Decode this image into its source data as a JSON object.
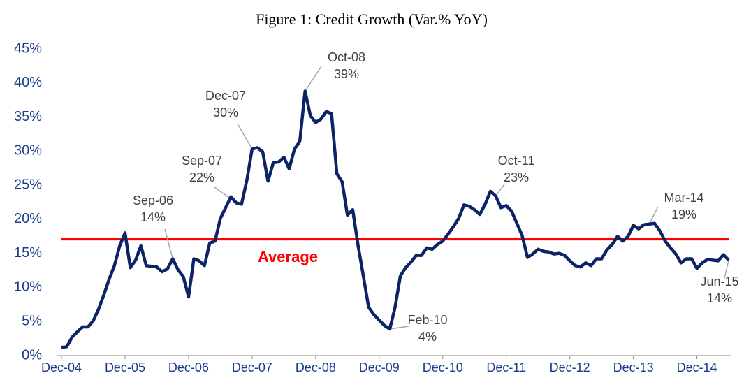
{
  "chart_data": {
    "type": "line",
    "title": "Figure 1: Credit Growth (Var.% YoY)",
    "categories": [
      "Dec-04",
      null,
      null,
      null,
      null,
      null,
      null,
      null,
      null,
      null,
      null,
      null,
      "Dec-05",
      null,
      null,
      null,
      null,
      null,
      null,
      null,
      null,
      null,
      null,
      null,
      "Dec-06",
      null,
      null,
      null,
      null,
      null,
      null,
      null,
      null,
      null,
      null,
      null,
      "Dec-07",
      null,
      null,
      null,
      null,
      null,
      null,
      null,
      null,
      null,
      null,
      null,
      "Dec-08",
      null,
      null,
      null,
      null,
      null,
      null,
      null,
      null,
      null,
      null,
      null,
      "Dec-09",
      null,
      null,
      null,
      null,
      null,
      null,
      null,
      null,
      null,
      null,
      null,
      "Dec-10",
      null,
      null,
      null,
      null,
      null,
      null,
      null,
      null,
      null,
      null,
      null,
      "Dec-11",
      null,
      null,
      null,
      null,
      null,
      null,
      null,
      null,
      null,
      null,
      null,
      "Dec-12",
      null,
      null,
      null,
      null,
      null,
      null,
      null,
      null,
      null,
      null,
      null,
      "Dec-13",
      null,
      null,
      null,
      null,
      null,
      null,
      null,
      null,
      null,
      null,
      null,
      "Dec-14",
      null,
      null,
      null,
      null,
      null,
      null
    ],
    "values": [
      1.2,
      1.3,
      2.7,
      3.5,
      4.2,
      4.2,
      5.1,
      6.8,
      8.9,
      11.2,
      13.2,
      16.1,
      18.0,
      12.9,
      14.0,
      16.1,
      13.2,
      13.1,
      13.0,
      12.3,
      12.7,
      14.2,
      12.6,
      11.6,
      8.6,
      14.2,
      13.9,
      13.2,
      16.5,
      16.8,
      20.1,
      21.7,
      23.3,
      22.4,
      22.2,
      25.7,
      30.3,
      30.5,
      29.9,
      25.6,
      28.3,
      28.4,
      29.1,
      27.4,
      30.3,
      31.4,
      38.8,
      35.2,
      34.2,
      34.7,
      35.8,
      35.5,
      26.7,
      25.5,
      20.6,
      21.4,
      16.2,
      11.7,
      7.1,
      6.0,
      5.2,
      4.4,
      3.9,
      7.1,
      11.7,
      12.9,
      13.7,
      14.7,
      14.7,
      15.8,
      15.6,
      16.3,
      16.8,
      17.8,
      18.9,
      20.1,
      22.1,
      21.9,
      21.4,
      20.7,
      22.2,
      24.1,
      23.4,
      21.7,
      22.0,
      21.2,
      19.4,
      17.6,
      14.4,
      14.9,
      15.6,
      15.3,
      15.2,
      14.9,
      15.0,
      14.7,
      13.9,
      13.2,
      13.0,
      13.6,
      13.2,
      14.2,
      14.2,
      15.5,
      16.3,
      17.5,
      16.8,
      17.5,
      19.1,
      18.6,
      19.2,
      19.3,
      19.4,
      18.3,
      16.8,
      15.8,
      14.9,
      13.6,
      14.2,
      14.2,
      12.8,
      13.6,
      14.1,
      14.0,
      13.9,
      14.8,
      14.0
    ],
    "point_labels": [
      null,
      null,
      null,
      null,
      null,
      null,
      null,
      null,
      null,
      null,
      null,
      null,
      null,
      null,
      null,
      null,
      null,
      null,
      null,
      null,
      null,
      "Sep-06",
      null,
      null,
      null,
      null,
      null,
      null,
      null,
      null,
      null,
      null,
      null,
      "Sep-07",
      null,
      null,
      "Dec-07",
      null,
      null,
      null,
      null,
      null,
      null,
      null,
      null,
      null,
      "Oct-08",
      null,
      null,
      null,
      null,
      null,
      null,
      null,
      null,
      null,
      null,
      null,
      null,
      null,
      null,
      null,
      "Feb-10",
      null,
      null,
      null,
      null,
      null,
      null,
      null,
      null,
      null,
      null,
      null,
      null,
      null,
      null,
      null,
      null,
      null,
      null,
      null,
      "Oct-11",
      null,
      null,
      null,
      null,
      null,
      null,
      null,
      null,
      null,
      null,
      null,
      null,
      null,
      null,
      null,
      null,
      null,
      null,
      null,
      null,
      null,
      null,
      null,
      null,
      null,
      null,
      null,
      null,
      "Mar-14",
      null,
      null,
      null,
      null,
      null,
      null,
      null,
      null,
      null,
      null,
      null,
      null,
      null,
      null,
      "Jun-15"
    ],
    "value_labels": [
      null,
      null,
      null,
      null,
      null,
      null,
      null,
      null,
      null,
      null,
      null,
      null,
      null,
      null,
      null,
      null,
      null,
      null,
      null,
      null,
      null,
      "14%",
      null,
      null,
      null,
      null,
      null,
      null,
      null,
      null,
      null,
      null,
      null,
      "22%",
      null,
      null,
      "30%",
      null,
      null,
      null,
      null,
      null,
      null,
      null,
      null,
      null,
      "39%",
      null,
      null,
      null,
      null,
      null,
      null,
      null,
      null,
      null,
      null,
      null,
      null,
      null,
      null,
      null,
      "4%",
      null,
      null,
      null,
      null,
      null,
      null,
      null,
      null,
      null,
      null,
      null,
      null,
      null,
      null,
      null,
      null,
      null,
      null,
      null,
      "23%",
      null,
      null,
      null,
      null,
      null,
      null,
      null,
      null,
      null,
      null,
      null,
      null,
      null,
      null,
      null,
      null,
      null,
      null,
      null,
      null,
      null,
      null,
      null,
      null,
      null,
      null,
      null,
      null,
      "19%",
      null,
      null,
      null,
      null,
      null,
      null,
      null,
      null,
      null,
      null,
      null,
      null,
      null,
      null,
      "14%"
    ],
    "color": "#0c2366",
    "average": {
      "label": "Average",
      "value": 17.1,
      "color": "#ff0000"
    },
    "ylim": [
      0,
      45
    ],
    "yticks": [
      {
        "value": 0,
        "label": "0%"
      },
      {
        "value": 5,
        "label": "5%"
      },
      {
        "value": 10,
        "label": "10%"
      },
      {
        "value": 15,
        "label": "15%"
      },
      {
        "value": 20,
        "label": "20%"
      },
      {
        "value": 25,
        "label": "25%"
      },
      {
        "value": 30,
        "label": "30%"
      },
      {
        "value": 35,
        "label": "35%"
      },
      {
        "value": 40,
        "label": "40%"
      },
      {
        "value": 45,
        "label": "45%"
      }
    ],
    "grid": false
  }
}
